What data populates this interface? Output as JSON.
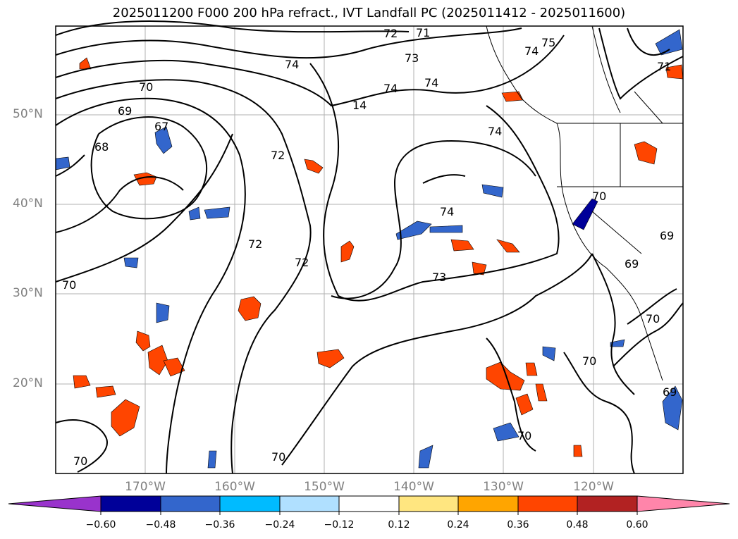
{
  "title": "2025011200 F000 200 hPa refract., IVT Landfall PC (2025011412 - 2025011600)",
  "axes": {
    "lat_labels": [
      "50°N",
      "40°N",
      "30°N",
      "20°N"
    ],
    "lon_labels": [
      "170°W",
      "160°W",
      "150°W",
      "140°W",
      "130°W",
      "120°W"
    ]
  },
  "colorbar": {
    "tick_labels": [
      "−0.60",
      "−0.48",
      "−0.36",
      "−0.24",
      "−0.12",
      "0.12",
      "0.24",
      "0.36",
      "0.48",
      "0.60"
    ],
    "colors": [
      "#9933cc",
      "#000099",
      "#3366cc",
      "#00bbff",
      "#b0e0ff",
      "#ffffff",
      "#ffe680",
      "#ffa500",
      "#ff4500",
      "#b22222",
      "#ff85aa"
    ]
  },
  "contour_labels": [
    "72",
    "71",
    "75",
    "74",
    "73",
    "74",
    "71",
    "74",
    "70",
    "74",
    "69",
    "14",
    "67",
    "74",
    "68",
    "72",
    "74",
    "70",
    "72",
    "72",
    "73",
    "70",
    "69",
    "69",
    "70",
    "70",
    "70",
    "69",
    "70",
    "70"
  ]
}
